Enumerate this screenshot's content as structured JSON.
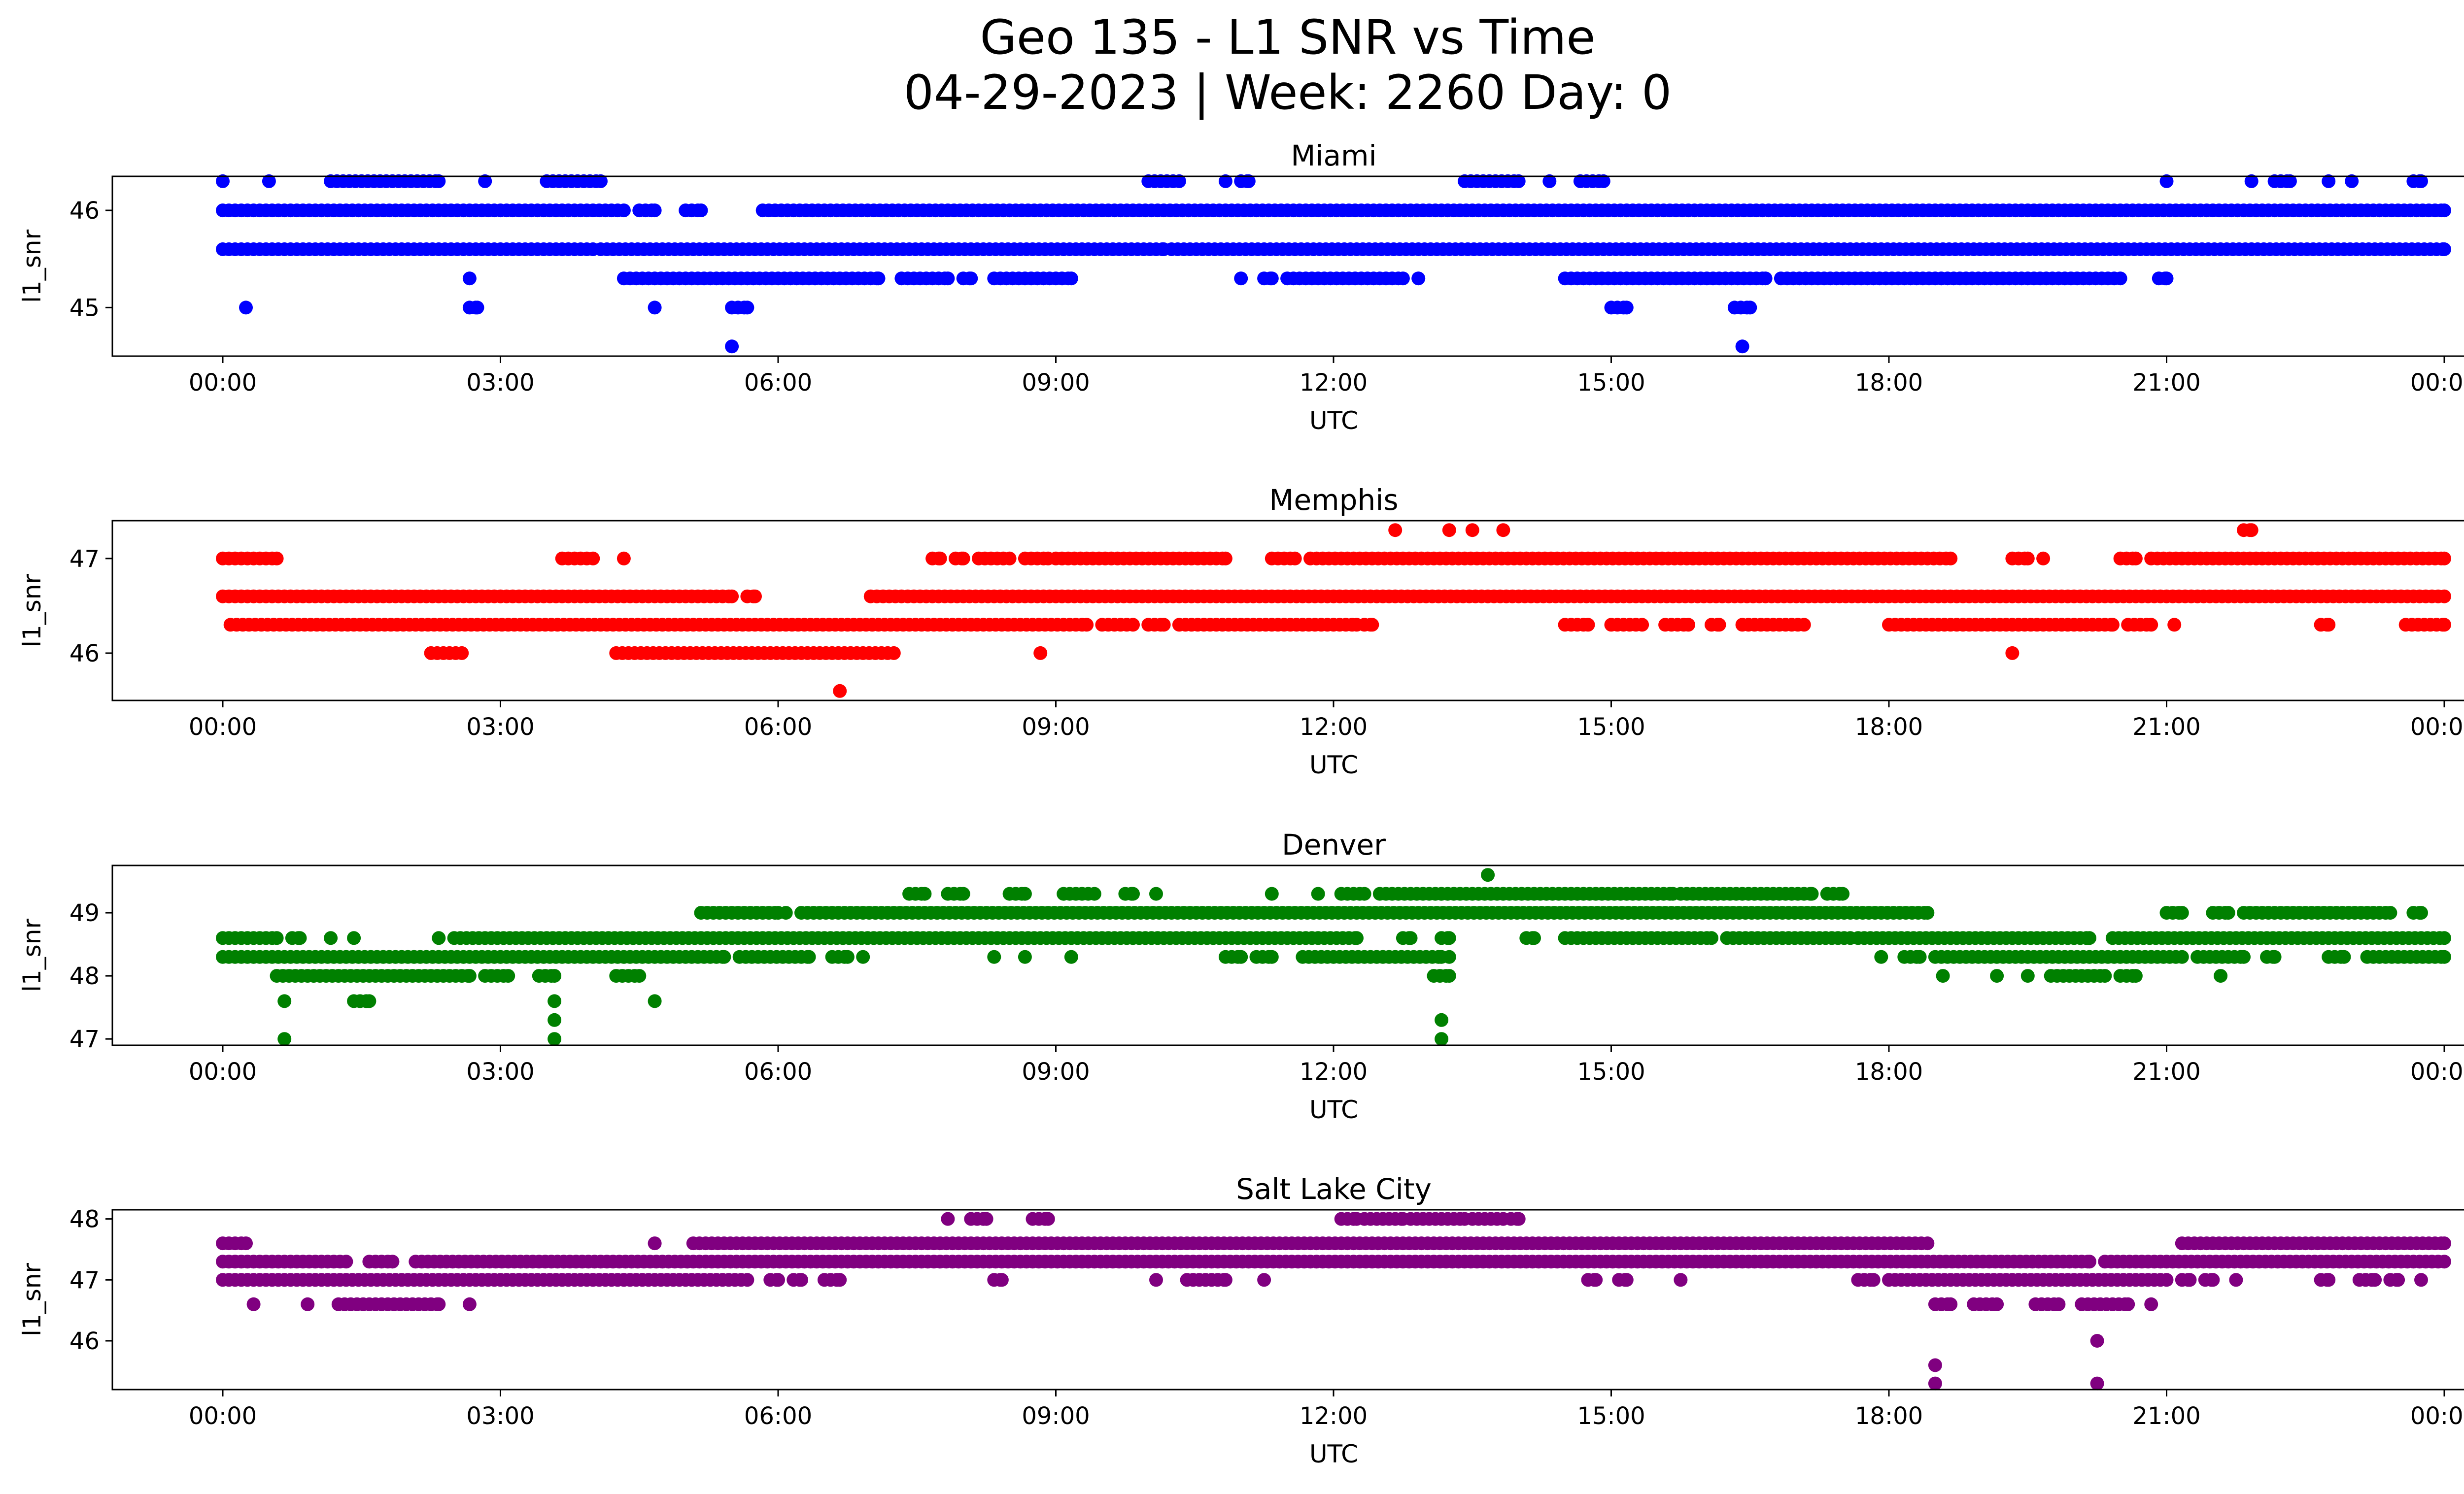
{
  "title_line1": "Geo 135 - L1 SNR vs Time",
  "title_line2": "04-29-2023 | Week: 2260 Day: 0",
  "chart_data": [
    {
      "type": "scatter",
      "title": "Miami",
      "xlabel": "UTC",
      "ylabel": "l1_snr",
      "color": "#0000ff",
      "xlim": [
        "00:00",
        "24:00"
      ],
      "ylim": [
        44.5,
        46.35
      ],
      "xticks": [
        "00:00",
        "03:00",
        "06:00",
        "09:00",
        "12:00",
        "15:00",
        "18:00",
        "21:00",
        "00:00"
      ],
      "yticks": [
        45,
        46
      ],
      "grid": false,
      "bands": [
        {
          "y": 46.3,
          "segments": [
            [
              "00:00",
              "00:00"
            ],
            [
              "00:30",
              "00:30"
            ],
            [
              "01:10",
              "02:20"
            ],
            [
              "02:50",
              "02:50"
            ],
            [
              "03:30",
              "04:05"
            ],
            [
              "10:00",
              "10:20"
            ],
            [
              "10:50",
              "10:50"
            ],
            [
              "11:00",
              "11:05"
            ],
            [
              "13:25",
              "14:00"
            ],
            [
              "14:20",
              "14:20"
            ],
            [
              "14:40",
              "14:55"
            ],
            [
              "21:00",
              "21:00"
            ],
            [
              "21:55",
              "21:55"
            ],
            [
              "22:10",
              "22:20"
            ],
            [
              "22:45",
              "22:45"
            ],
            [
              "23:00",
              "23:00"
            ],
            [
              "23:40",
              "23:45"
            ]
          ]
        },
        {
          "y": 46.0,
          "segments": [
            [
              "00:00",
              "04:20"
            ],
            [
              "04:30",
              "04:40"
            ],
            [
              "05:00",
              "05:10"
            ],
            [
              "05:50",
              "24:00"
            ]
          ]
        },
        {
          "y": 45.6,
          "segments": [
            [
              "00:00",
              "04:00"
            ],
            [
              "04:05",
              "10:10"
            ],
            [
              "10:15",
              "24:00"
            ]
          ]
        },
        {
          "y": 45.3,
          "segments": [
            [
              "02:40",
              "02:40"
            ],
            [
              "04:20",
              "07:05"
            ],
            [
              "07:20",
              "07:50"
            ],
            [
              "08:00",
              "08:05"
            ],
            [
              "08:20",
              "09:10"
            ],
            [
              "11:00",
              "11:00"
            ],
            [
              "11:15",
              "11:20"
            ],
            [
              "11:30",
              "12:45"
            ],
            [
              "12:55",
              "12:55"
            ],
            [
              "14:30",
              "16:40"
            ],
            [
              "16:50",
              "20:30"
            ],
            [
              "20:55",
              "21:00"
            ]
          ]
        },
        {
          "y": 45.0,
          "segments": [
            [
              "00:15",
              "00:15"
            ],
            [
              "02:40",
              "02:45"
            ],
            [
              "04:40",
              "04:40"
            ],
            [
              "05:30",
              "05:40"
            ],
            [
              "15:00",
              "15:10"
            ],
            [
              "16:20",
              "16:30"
            ]
          ]
        },
        {
          "y": 44.6,
          "segments": [
            [
              "05:30",
              "05:30"
            ],
            [
              "16:25",
              "16:25"
            ]
          ]
        }
      ]
    },
    {
      "type": "scatter",
      "title": "Memphis",
      "xlabel": "UTC",
      "ylabel": "l1_snr",
      "color": "#ff0000",
      "xlim": [
        "00:00",
        "24:00"
      ],
      "ylim": [
        45.5,
        47.4
      ],
      "xticks": [
        "00:00",
        "03:00",
        "06:00",
        "09:00",
        "12:00",
        "15:00",
        "18:00",
        "21:00",
        "00:00"
      ],
      "yticks": [
        46,
        47
      ],
      "grid": false,
      "bands": [
        {
          "y": 47.3,
          "segments": [
            [
              "12:40",
              "12:40"
            ],
            [
              "13:15",
              "13:15"
            ],
            [
              "13:30",
              "13:30"
            ],
            [
              "13:50",
              "13:50"
            ],
            [
              "21:50",
              "21:55"
            ]
          ]
        },
        {
          "y": 47.0,
          "segments": [
            [
              "00:00",
              "00:35"
            ],
            [
              "03:40",
              "04:00"
            ],
            [
              "04:20",
              "04:20"
            ],
            [
              "07:40",
              "07:45"
            ],
            [
              "07:55",
              "08:00"
            ],
            [
              "08:10",
              "08:30"
            ],
            [
              "08:40",
              "08:55"
            ],
            [
              "09:00",
              "10:50"
            ],
            [
              "11:20",
              "11:35"
            ],
            [
              "11:45",
              "18:40"
            ],
            [
              "19:20",
              "19:30"
            ],
            [
              "19:40",
              "19:40"
            ],
            [
              "20:30",
              "20:40"
            ],
            [
              "20:50",
              "24:00"
            ]
          ]
        },
        {
          "y": 46.6,
          "segments": [
            [
              "00:00",
              "05:30"
            ],
            [
              "05:40",
              "05:45"
            ],
            [
              "07:00",
              "24:00"
            ]
          ]
        },
        {
          "y": 46.3,
          "segments": [
            [
              "00:05",
              "09:20"
            ],
            [
              "09:30",
              "09:50"
            ],
            [
              "10:00",
              "10:10"
            ],
            [
              "10:20",
              "12:15"
            ],
            [
              "12:20",
              "12:25"
            ],
            [
              "14:30",
              "14:45"
            ],
            [
              "15:00",
              "15:20"
            ],
            [
              "15:35",
              "15:50"
            ],
            [
              "16:05",
              "16:10"
            ],
            [
              "16:25",
              "17:05"
            ],
            [
              "18:00",
              "20:25"
            ],
            [
              "20:35",
              "20:50"
            ],
            [
              "21:05",
              "21:05"
            ],
            [
              "22:40",
              "22:45"
            ],
            [
              "23:35",
              "24:00"
            ]
          ]
        },
        {
          "y": 46.0,
          "segments": [
            [
              "02:15",
              "02:35"
            ],
            [
              "04:15",
              "07:15"
            ],
            [
              "08:50",
              "08:50"
            ],
            [
              "19:20",
              "19:20"
            ]
          ]
        },
        {
          "y": 45.6,
          "segments": [
            [
              "06:40",
              "06:40"
            ]
          ]
        }
      ]
    },
    {
      "type": "scatter",
      "title": "Denver",
      "xlabel": "UTC",
      "ylabel": "l1_snr",
      "color": "#008000",
      "xlim": [
        "00:00",
        "24:00"
      ],
      "ylim": [
        46.9,
        49.75
      ],
      "xticks": [
        "00:00",
        "03:00",
        "06:00",
        "09:00",
        "12:00",
        "15:00",
        "18:00",
        "21:00",
        "00:00"
      ],
      "yticks": [
        47,
        48,
        49
      ],
      "grid": false,
      "bands": [
        {
          "y": 49.6,
          "segments": [
            [
              "13:40",
              "13:40"
            ]
          ]
        },
        {
          "y": 49.3,
          "segments": [
            [
              "07:25",
              "07:35"
            ],
            [
              "07:50",
              "08:00"
            ],
            [
              "08:30",
              "08:40"
            ],
            [
              "09:05",
              "09:25"
            ],
            [
              "09:45",
              "09:50"
            ],
            [
              "10:05",
              "10:05"
            ],
            [
              "11:20",
              "11:20"
            ],
            [
              "11:50",
              "11:50"
            ],
            [
              "12:05",
              "12:20"
            ],
            [
              "12:30",
              "15:40"
            ],
            [
              "15:45",
              "17:10"
            ],
            [
              "17:20",
              "17:30"
            ]
          ]
        },
        {
          "y": 49.0,
          "segments": [
            [
              "05:10",
              "06:00"
            ],
            [
              "06:05",
              "06:05"
            ],
            [
              "06:15",
              "18:25"
            ],
            [
              "21:00",
              "21:10"
            ],
            [
              "21:30",
              "21:40"
            ],
            [
              "21:50",
              "23:25"
            ],
            [
              "23:40",
              "23:45"
            ]
          ]
        },
        {
          "y": 48.6,
          "segments": [
            [
              "00:00",
              "00:35"
            ],
            [
              "00:45",
              "00:50"
            ],
            [
              "01:10",
              "01:10"
            ],
            [
              "01:25",
              "01:25"
            ],
            [
              "02:20",
              "02:20"
            ],
            [
              "02:30",
              "12:15"
            ],
            [
              "12:45",
              "12:50"
            ],
            [
              "13:10",
              "13:15"
            ],
            [
              "14:05",
              "14:10"
            ],
            [
              "14:30",
              "16:05"
            ],
            [
              "16:15",
              "17:35"
            ],
            [
              "17:40",
              "20:10"
            ],
            [
              "20:25",
              "24:00"
            ]
          ]
        },
        {
          "y": 48.3,
          "segments": [
            [
              "00:00",
              "05:25"
            ],
            [
              "05:35",
              "06:20"
            ],
            [
              "06:35",
              "06:45"
            ],
            [
              "06:55",
              "06:55"
            ],
            [
              "08:20",
              "08:20"
            ],
            [
              "08:40",
              "08:40"
            ],
            [
              "09:10",
              "09:10"
            ],
            [
              "10:50",
              "11:00"
            ],
            [
              "11:10",
              "11:20"
            ],
            [
              "11:40",
              "13:10"
            ],
            [
              "13:15",
              "13:15"
            ],
            [
              "17:55",
              "17:55"
            ],
            [
              "18:10",
              "18:20"
            ],
            [
              "18:30",
              "21:10"
            ],
            [
              "21:20",
              "21:50"
            ],
            [
              "22:05",
              "22:10"
            ],
            [
              "22:45",
              "22:55"
            ],
            [
              "23:10",
              "24:00"
            ]
          ]
        },
        {
          "y": 48.0,
          "segments": [
            [
              "00:35",
              "02:40"
            ],
            [
              "02:50",
              "03:05"
            ],
            [
              "03:25",
              "03:35"
            ],
            [
              "04:15",
              "04:30"
            ],
            [
              "13:05",
              "13:15"
            ],
            [
              "18:35",
              "18:35"
            ],
            [
              "19:10",
              "19:10"
            ],
            [
              "19:30",
              "19:30"
            ],
            [
              "19:45",
              "20:20"
            ],
            [
              "20:30",
              "20:40"
            ],
            [
              "21:35",
              "21:35"
            ]
          ]
        },
        {
          "y": 47.6,
          "segments": [
            [
              "00:40",
              "00:40"
            ],
            [
              "01:25",
              "01:35"
            ],
            [
              "03:35",
              "03:35"
            ],
            [
              "04:40",
              "04:40"
            ]
          ]
        },
        {
          "y": 47.3,
          "segments": [
            [
              "03:35",
              "03:35"
            ],
            [
              "13:10",
              "13:10"
            ]
          ]
        },
        {
          "y": 47.0,
          "segments": [
            [
              "00:40",
              "00:40"
            ],
            [
              "03:35",
              "03:35"
            ],
            [
              "13:10",
              "13:10"
            ]
          ]
        }
      ]
    },
    {
      "type": "scatter",
      "title": "Salt Lake City",
      "xlabel": "UTC",
      "ylabel": "l1_snr",
      "color": "#800080",
      "xlim": [
        "00:00",
        "24:00"
      ],
      "ylim": [
        45.2,
        48.15
      ],
      "xticks": [
        "00:00",
        "03:00",
        "06:00",
        "09:00",
        "12:00",
        "15:00",
        "18:00",
        "21:00",
        "00:00"
      ],
      "yticks": [
        46,
        47,
        48
      ],
      "grid": false,
      "bands": [
        {
          "y": 48.0,
          "segments": [
            [
              "07:50",
              "07:50"
            ],
            [
              "08:05",
              "08:15"
            ],
            [
              "08:45",
              "08:55"
            ],
            [
              "12:05",
              "12:15"
            ],
            [
              "12:20",
              "12:45"
            ],
            [
              "12:50",
              "13:25"
            ],
            [
              "13:30",
              "13:50"
            ],
            [
              "13:55",
              "14:00"
            ]
          ]
        },
        {
          "y": 47.6,
          "segments": [
            [
              "00:00",
              "00:15"
            ],
            [
              "04:40",
              "04:40"
            ],
            [
              "05:05",
              "18:25"
            ],
            [
              "21:10",
              "24:00"
            ]
          ]
        },
        {
          "y": 47.3,
          "segments": [
            [
              "00:00",
              "01:20"
            ],
            [
              "01:35",
              "01:50"
            ],
            [
              "02:05",
              "20:10"
            ],
            [
              "20:20",
              "24:00"
            ]
          ]
        },
        {
          "y": 47.0,
          "segments": [
            [
              "00:00",
              "05:40"
            ],
            [
              "05:55",
              "06:00"
            ],
            [
              "06:10",
              "06:15"
            ],
            [
              "06:30",
              "06:40"
            ],
            [
              "08:20",
              "08:25"
            ],
            [
              "10:05",
              "10:05"
            ],
            [
              "10:25",
              "10:50"
            ],
            [
              "11:15",
              "11:15"
            ],
            [
              "14:45",
              "14:50"
            ],
            [
              "15:05",
              "15:10"
            ],
            [
              "15:45",
              "15:45"
            ],
            [
              "17:40",
              "17:50"
            ],
            [
              "18:00",
              "21:00"
            ],
            [
              "21:10",
              "21:15"
            ],
            [
              "21:25",
              "21:30"
            ],
            [
              "21:45",
              "21:45"
            ],
            [
              "22:40",
              "22:45"
            ],
            [
              "23:05",
              "23:15"
            ],
            [
              "23:25",
              "23:30"
            ],
            [
              "23:45",
              "23:45"
            ]
          ]
        },
        {
          "y": 46.6,
          "segments": [
            [
              "00:20",
              "00:20"
            ],
            [
              "00:55",
              "00:55"
            ],
            [
              "01:15",
              "02:20"
            ],
            [
              "02:40",
              "02:40"
            ],
            [
              "18:30",
              "18:40"
            ],
            [
              "18:55",
              "19:10"
            ],
            [
              "19:35",
              "19:50"
            ],
            [
              "20:05",
              "20:35"
            ],
            [
              "20:50",
              "20:50"
            ]
          ]
        },
        {
          "y": 46.0,
          "segments": [
            [
              "20:15",
              "20:15"
            ]
          ]
        },
        {
          "y": 45.6,
          "segments": [
            [
              "18:30",
              "18:30"
            ]
          ]
        },
        {
          "y": 45.3,
          "segments": [
            [
              "18:30",
              "18:30"
            ],
            [
              "20:15",
              "20:15"
            ]
          ]
        }
      ]
    }
  ]
}
